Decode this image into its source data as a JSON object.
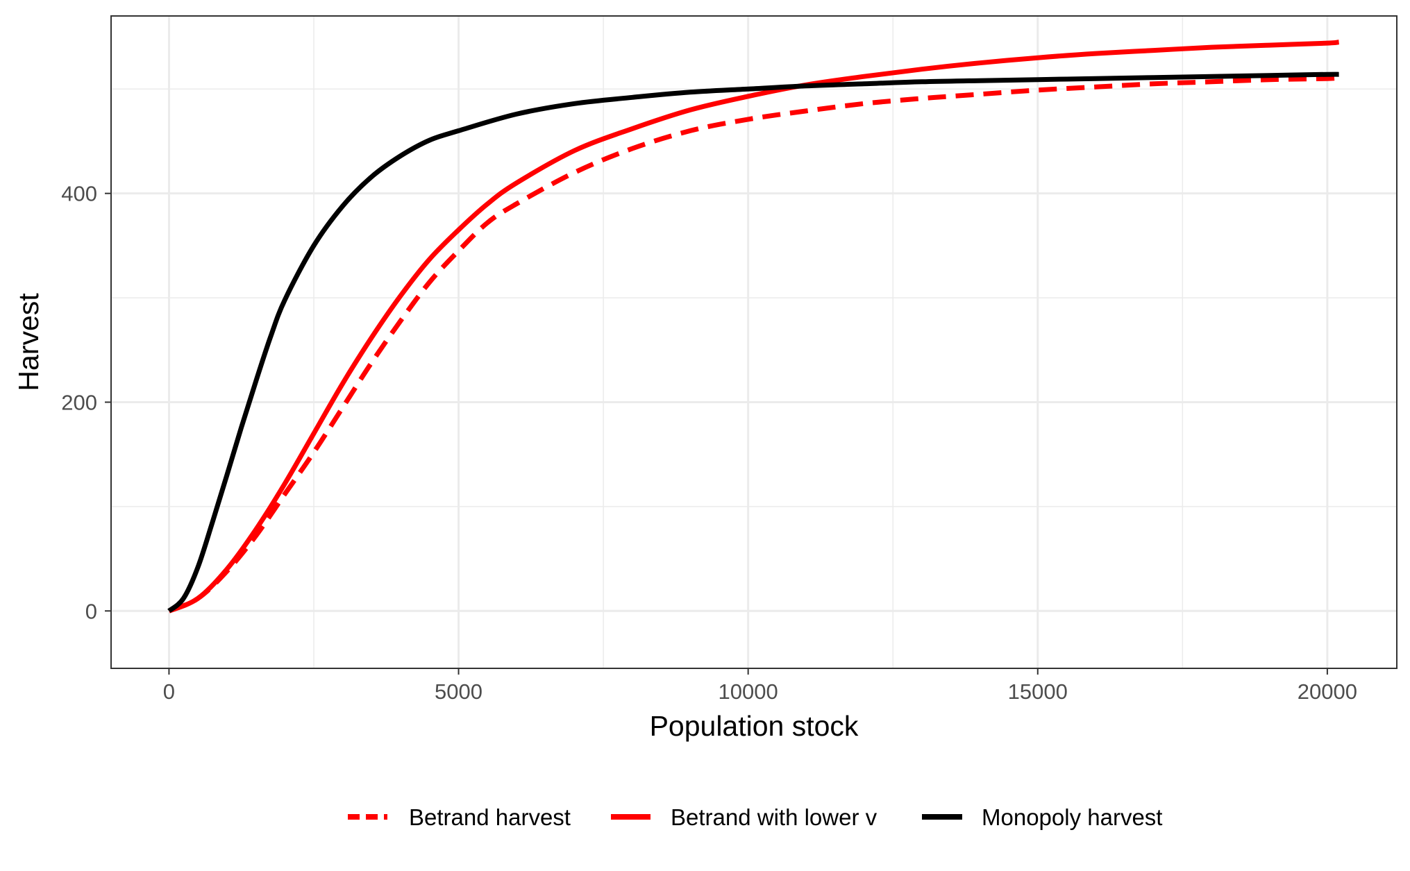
{
  "chart_data": {
    "type": "line",
    "title": "",
    "xlabel": "Population stock",
    "ylabel": "Harvest",
    "xlim": [
      -1000,
      21200
    ],
    "ylim": [
      -55,
      570
    ],
    "xticks": [
      0,
      5000,
      10000,
      15000,
      20000
    ],
    "xtick_labels": [
      "0",
      "5000",
      "10000",
      "15000",
      "20000"
    ],
    "yticks": [
      0,
      200,
      400
    ],
    "ytick_labels": [
      "0",
      "200",
      "400"
    ],
    "grid": true,
    "legend_position": "bottom",
    "colors": {
      "betrand": "#ff0000",
      "betrand_lower_v": "#ff0000",
      "monopoly": "#000000",
      "grid": "#ebebeb",
      "panel_border": "#333333"
    },
    "series": [
      {
        "name": "Betrand harvest",
        "style": "dashed",
        "color": "#ff0000",
        "x": [
          0,
          500,
          1000,
          1500,
          2000,
          2500,
          3000,
          3500,
          4000,
          4500,
          5000,
          5500,
          6000,
          7000,
          8000,
          9000,
          10000,
          11000,
          12000,
          13000,
          14000,
          15000,
          16000,
          17000,
          18000,
          19000,
          20000,
          20200
        ],
        "y": [
          0,
          12,
          38,
          72,
          112,
          152,
          195,
          238,
          278,
          315,
          345,
          372,
          390,
          420,
          443,
          460,
          471,
          479,
          486,
          491,
          495,
          499,
          502,
          505,
          507,
          509,
          510,
          511
        ]
      },
      {
        "name": "Betrand with lower v",
        "style": "solid",
        "color": "#ff0000",
        "x": [
          0,
          500,
          1000,
          1500,
          2000,
          2500,
          3000,
          3500,
          4000,
          4500,
          5000,
          5500,
          6000,
          7000,
          8000,
          9000,
          10000,
          11000,
          12000,
          13000,
          14000,
          15000,
          16000,
          17000,
          18000,
          19000,
          20000,
          20200
        ],
        "y": [
          0,
          12,
          40,
          78,
          122,
          170,
          218,
          262,
          302,
          337,
          365,
          390,
          410,
          441,
          462,
          480,
          493,
          504,
          512,
          519,
          525,
          530,
          534,
          537,
          540,
          542,
          544,
          545
        ]
      },
      {
        "name": "Monopoly harvest",
        "style": "solid",
        "color": "#000000",
        "x": [
          0,
          250,
          500,
          750,
          1000,
          1250,
          1500,
          1750,
          2000,
          2500,
          3000,
          3500,
          4000,
          4500,
          5000,
          6000,
          7000,
          8000,
          9000,
          10000,
          11000,
          12000,
          13000,
          14000,
          15000,
          16000,
          17000,
          18000,
          19000,
          20000,
          20200
        ],
        "y": [
          0,
          12,
          42,
          85,
          130,
          176,
          220,
          262,
          298,
          350,
          388,
          416,
          436,
          451,
          460,
          476,
          486,
          492,
          497,
          500,
          503,
          505,
          507,
          508,
          509,
          510,
          511,
          512,
          513,
          514,
          514
        ]
      }
    ]
  }
}
